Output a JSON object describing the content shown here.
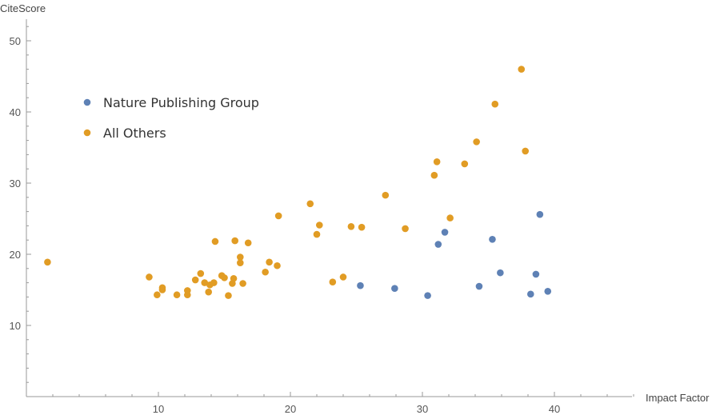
{
  "chart_data": {
    "type": "scatter",
    "xlabel": "Impact Factor",
    "ylabel": "CiteScore",
    "xlim": [
      0,
      46
    ],
    "ylim": [
      0,
      52
    ],
    "x_ticks": [
      10,
      20,
      30,
      40
    ],
    "y_ticks": [
      10,
      20,
      30,
      40,
      50
    ],
    "legend_position": "top-left",
    "series": [
      {
        "name": "Nature Publishing Group",
        "color": "#5e81b5",
        "points": [
          [
            25.3,
            15.6
          ],
          [
            27.9,
            15.2
          ],
          [
            30.4,
            14.2
          ],
          [
            31.2,
            21.4
          ],
          [
            31.7,
            23.1
          ],
          [
            34.3,
            15.5
          ],
          [
            35.3,
            22.1
          ],
          [
            35.9,
            17.4
          ],
          [
            38.2,
            14.4
          ],
          [
            38.6,
            17.2
          ],
          [
            38.9,
            25.6
          ],
          [
            39.5,
            14.8
          ]
        ]
      },
      {
        "name": "All Others",
        "color": "#e19c24",
        "points": [
          [
            1.6,
            18.9
          ],
          [
            9.3,
            16.8
          ],
          [
            9.9,
            14.3
          ],
          [
            10.3,
            15.0
          ],
          [
            10.3,
            15.3
          ],
          [
            11.4,
            14.3
          ],
          [
            12.2,
            14.3
          ],
          [
            12.2,
            14.9
          ],
          [
            12.8,
            16.4
          ],
          [
            13.2,
            17.3
          ],
          [
            13.5,
            16.0
          ],
          [
            13.8,
            14.7
          ],
          [
            13.9,
            15.7
          ],
          [
            14.2,
            16.0
          ],
          [
            14.3,
            21.8
          ],
          [
            14.8,
            17.0
          ],
          [
            15.0,
            16.7
          ],
          [
            15.3,
            14.2
          ],
          [
            15.6,
            15.9
          ],
          [
            15.7,
            16.6
          ],
          [
            15.8,
            21.9
          ],
          [
            16.2,
            19.6
          ],
          [
            16.2,
            18.8
          ],
          [
            16.4,
            15.9
          ],
          [
            16.8,
            21.6
          ],
          [
            18.1,
            17.5
          ],
          [
            18.4,
            18.9
          ],
          [
            19.0,
            18.4
          ],
          [
            19.1,
            25.4
          ],
          [
            21.5,
            27.1
          ],
          [
            22.0,
            22.8
          ],
          [
            22.2,
            24.1
          ],
          [
            23.2,
            16.1
          ],
          [
            24.0,
            16.8
          ],
          [
            24.6,
            23.9
          ],
          [
            25.4,
            23.8
          ],
          [
            27.2,
            28.3
          ],
          [
            28.7,
            23.6
          ],
          [
            30.9,
            31.1
          ],
          [
            31.1,
            33.0
          ],
          [
            32.1,
            25.1
          ],
          [
            33.2,
            32.7
          ],
          [
            34.1,
            35.8
          ],
          [
            35.5,
            41.1
          ],
          [
            37.5,
            46.0
          ],
          [
            37.8,
            34.5
          ]
        ]
      }
    ]
  }
}
